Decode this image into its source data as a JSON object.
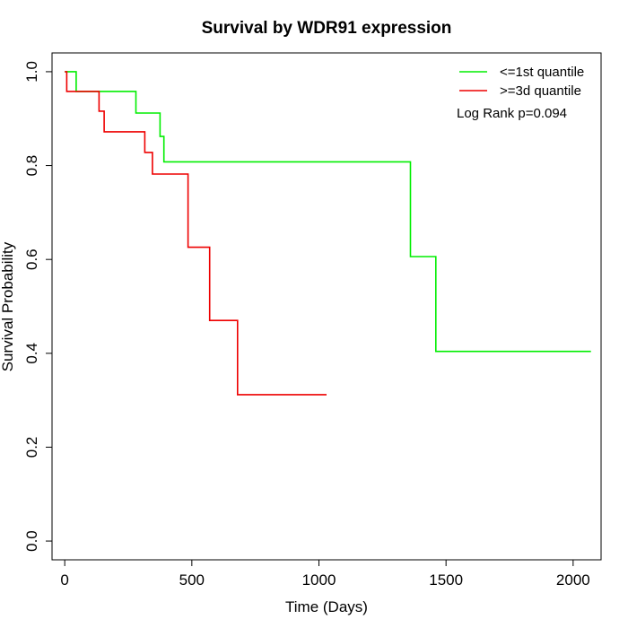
{
  "chart_data": {
    "type": "line",
    "title": "Survival by WDR91 expression",
    "xlabel": "Time (Days)",
    "ylabel": "Survival Probability",
    "xlim": [
      -50,
      2110
    ],
    "ylim": [
      -0.04,
      1.04
    ],
    "x_ticks": [
      0,
      500,
      1000,
      1500,
      2000
    ],
    "y_ticks": [
      0.0,
      0.2,
      0.4,
      0.6,
      0.8,
      1.0
    ],
    "x_tick_labels": [
      "0",
      "500",
      "1000",
      "1500",
      "2000"
    ],
    "y_tick_labels": [
      "0.0",
      "0.2",
      "0.4",
      "0.6",
      "0.8",
      "1.0"
    ],
    "grid": false,
    "legend_position": "top-right",
    "annotation": "Log Rank p=0.094",
    "series": [
      {
        "name": "<=1st quantile",
        "color": "#00ee00",
        "step": true,
        "x": [
          0,
          45,
          45,
          280,
          280,
          375,
          375,
          390,
          390,
          1360,
          1360,
          1460,
          1460,
          2070
        ],
        "y": [
          1.0,
          1.0,
          0.958,
          0.958,
          0.912,
          0.912,
          0.862,
          0.862,
          0.808,
          0.808,
          0.606,
          0.606,
          0.404,
          0.404
        ]
      },
      {
        "name": ">=3d quantile",
        "color": "#ee0000",
        "step": true,
        "x": [
          0,
          8,
          8,
          135,
          135,
          155,
          155,
          315,
          315,
          345,
          345,
          485,
          485,
          570,
          570,
          680,
          680,
          1030
        ],
        "y": [
          1.0,
          1.0,
          0.958,
          0.958,
          0.916,
          0.916,
          0.872,
          0.872,
          0.828,
          0.828,
          0.782,
          0.782,
          0.626,
          0.626,
          0.47,
          0.47,
          0.312,
          0.312
        ]
      }
    ]
  }
}
